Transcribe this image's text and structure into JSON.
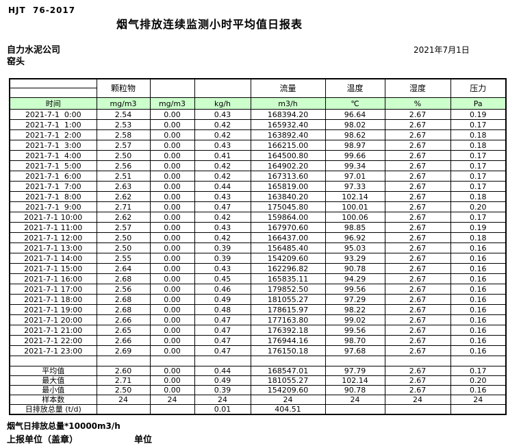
{
  "header": {
    "standard_no": "HJT  76-2017",
    "title": "烟气排放连续监测小时平均值日报表",
    "company": "自力水泥公司",
    "station": "窑头",
    "date": "2021年7月1日"
  },
  "table": {
    "group_headers": [
      "",
      "颗粒物",
      "",
      "",
      "流量",
      "温度",
      "湿度",
      "压力"
    ],
    "unit_row": [
      "时间",
      "mg/m3",
      "mg/m3",
      "kg/h",
      "m3/h",
      "℃",
      "%",
      "Pa"
    ],
    "rows": [
      [
        "2021-7-1  0:00",
        "2.54",
        "0.00",
        "0.43",
        "168394.20",
        "96.64",
        "2.67",
        "0.19"
      ],
      [
        "2021-7-1  1:00",
        "2.53",
        "0.00",
        "0.42",
        "165932.40",
        "98.02",
        "2.67",
        "0.17"
      ],
      [
        "2021-7-1  2:00",
        "2.58",
        "0.00",
        "0.42",
        "163892.40",
        "98.62",
        "2.67",
        "0.18"
      ],
      [
        "2021-7-1  3:00",
        "2.57",
        "0.00",
        "0.43",
        "166215.00",
        "98.97",
        "2.67",
        "0.18"
      ],
      [
        "2021-7-1  4:00",
        "2.50",
        "0.00",
        "0.41",
        "164500.80",
        "99.66",
        "2.67",
        "0.17"
      ],
      [
        "2021-7-1  5:00",
        "2.56",
        "0.00",
        "0.42",
        "164902.20",
        "99.34",
        "2.67",
        "0.17"
      ],
      [
        "2021-7-1  6:00",
        "2.51",
        "0.00",
        "0.42",
        "167313.60",
        "97.01",
        "2.67",
        "0.17"
      ],
      [
        "2021-7-1  7:00",
        "2.63",
        "0.00",
        "0.44",
        "165819.00",
        "97.33",
        "2.67",
        "0.17"
      ],
      [
        "2021-7-1  8:00",
        "2.62",
        "0.00",
        "0.43",
        "163840.20",
        "102.14",
        "2.67",
        "0.18"
      ],
      [
        "2021-7-1  9:00",
        "2.71",
        "0.00",
        "0.47",
        "175045.80",
        "100.01",
        "2.67",
        "0.20"
      ],
      [
        "2021-7-1 10:00",
        "2.62",
        "0.00",
        "0.42",
        "159864.00",
        "100.06",
        "2.67",
        "0.17"
      ],
      [
        "2021-7-1 11:00",
        "2.57",
        "0.00",
        "0.43",
        "167970.60",
        "98.85",
        "2.67",
        "0.19"
      ],
      [
        "2021-7-1 12:00",
        "2.50",
        "0.00",
        "0.42",
        "166437.00",
        "96.92",
        "2.67",
        "0.18"
      ],
      [
        "2021-7-1 13:00",
        "2.50",
        "0.00",
        "0.39",
        "156485.40",
        "95.03",
        "2.67",
        "0.16"
      ],
      [
        "2021-7-1 14:00",
        "2.55",
        "0.00",
        "0.39",
        "154209.60",
        "93.29",
        "2.67",
        "0.16"
      ],
      [
        "2021-7-1 15:00",
        "2.64",
        "0.00",
        "0.43",
        "162296.82",
        "90.78",
        "2.67",
        "0.16"
      ],
      [
        "2021-7-1 16:00",
        "2.68",
        "0.00",
        "0.45",
        "165835.11",
        "94.29",
        "2.67",
        "0.16"
      ],
      [
        "2021-7-1 17:00",
        "2.56",
        "0.00",
        "0.46",
        "179852.50",
        "99.56",
        "2.67",
        "0.16"
      ],
      [
        "2021-7-1 18:00",
        "2.68",
        "0.00",
        "0.49",
        "181055.27",
        "97.29",
        "2.67",
        "0.16"
      ],
      [
        "2021-7-1 19:00",
        "2.68",
        "0.00",
        "0.48",
        "178615.97",
        "98.22",
        "2.67",
        "0.16"
      ],
      [
        "2021-7-1 20:00",
        "2.66",
        "0.00",
        "0.47",
        "177163.80",
        "99.02",
        "2.67",
        "0.16"
      ],
      [
        "2021-7-1 21:00",
        "2.65",
        "0.00",
        "0.47",
        "176392.18",
        "99.56",
        "2.67",
        "0.16"
      ],
      [
        "2021-7-1 22:00",
        "2.66",
        "0.00",
        "0.47",
        "176944.16",
        "98.70",
        "2.67",
        "0.16"
      ],
      [
        "2021-7-1 23:00",
        "2.69",
        "0.00",
        "0.47",
        "176150.18",
        "97.68",
        "2.67",
        "0.16"
      ]
    ],
    "summary": [
      {
        "label": "平均值",
        "values": [
          "2.60",
          "0.00",
          "0.44",
          "168547.01",
          "97.79",
          "2.67",
          "0.17"
        ]
      },
      {
        "label": "最大值",
        "values": [
          "2.71",
          "0.00",
          "0.49",
          "181055.27",
          "102.14",
          "2.67",
          "0.20"
        ]
      },
      {
        "label": "最小值",
        "values": [
          "2.50",
          "0.00",
          "0.39",
          "154209.60",
          "90.78",
          "2.67",
          "0.16"
        ]
      },
      {
        "label": "样本数",
        "values": [
          "24",
          "24",
          "24",
          "24",
          "24",
          "24",
          "24"
        ]
      },
      {
        "label": "日排放总量 (t/d)",
        "values": [
          "",
          "",
          "0.01",
          "404.51",
          "",
          "",
          ""
        ]
      }
    ]
  },
  "footer": {
    "note": "烟气日排放总量*10000m3/h",
    "report_unit": "上报单位（盖章）",
    "unit_label": "单位"
  },
  "colors": {
    "header_green": "#ccffcc"
  }
}
